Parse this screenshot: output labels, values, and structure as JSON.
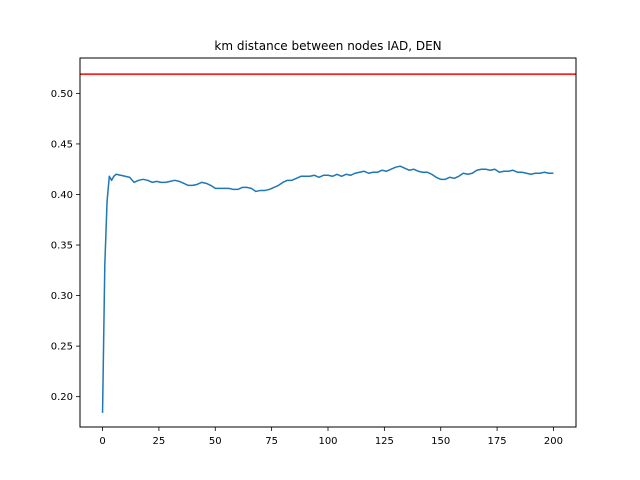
{
  "chart_data": {
    "type": "line",
    "title": "km distance between nodes IAD, DEN",
    "xlabel": "",
    "ylabel": "",
    "xlim": [
      -10,
      210
    ],
    "ylim": [
      0.17,
      0.535
    ],
    "xticks": [
      0,
      25,
      50,
      75,
      100,
      125,
      150,
      175,
      200
    ],
    "xtick_labels": [
      "0",
      "25",
      "50",
      "75",
      "100",
      "125",
      "150",
      "175",
      "200"
    ],
    "yticks": [
      0.2,
      0.25,
      0.3,
      0.35,
      0.4,
      0.45,
      0.5
    ],
    "ytick_labels": [
      "0.20",
      "0.25",
      "0.30",
      "0.35",
      "0.40",
      "0.45",
      "0.50"
    ],
    "grid": false,
    "reference_lines": [
      {
        "orientation": "horizontal",
        "y": 0.519,
        "color": "#ff0000"
      }
    ],
    "series": [
      {
        "color": "#1f77b4",
        "x": [
          0,
          1,
          2,
          3,
          4,
          5,
          6,
          8,
          10,
          12,
          14,
          16,
          18,
          20,
          22,
          24,
          26,
          28,
          30,
          32,
          34,
          36,
          38,
          40,
          42,
          44,
          46,
          48,
          50,
          52,
          54,
          56,
          58,
          60,
          62,
          64,
          66,
          68,
          70,
          72,
          74,
          76,
          78,
          80,
          82,
          84,
          86,
          88,
          90,
          92,
          94,
          96,
          98,
          100,
          102,
          104,
          106,
          108,
          110,
          112,
          114,
          116,
          118,
          120,
          122,
          124,
          126,
          128,
          130,
          132,
          134,
          136,
          138,
          140,
          142,
          144,
          146,
          148,
          150,
          152,
          154,
          156,
          158,
          160,
          162,
          164,
          166,
          168,
          170,
          172,
          174,
          176,
          178,
          180,
          182,
          184,
          186,
          188,
          190,
          192,
          194,
          196,
          198,
          200
        ],
        "values": [
          0.184,
          0.33,
          0.393,
          0.418,
          0.414,
          0.418,
          0.42,
          0.419,
          0.418,
          0.417,
          0.412,
          0.414,
          0.415,
          0.414,
          0.412,
          0.413,
          0.412,
          0.412,
          0.413,
          0.414,
          0.413,
          0.411,
          0.409,
          0.409,
          0.41,
          0.412,
          0.411,
          0.409,
          0.406,
          0.406,
          0.406,
          0.406,
          0.405,
          0.405,
          0.407,
          0.407,
          0.406,
          0.403,
          0.404,
          0.404,
          0.405,
          0.407,
          0.409,
          0.412,
          0.414,
          0.414,
          0.416,
          0.418,
          0.418,
          0.418,
          0.419,
          0.417,
          0.419,
          0.419,
          0.418,
          0.42,
          0.418,
          0.42,
          0.419,
          0.421,
          0.422,
          0.423,
          0.421,
          0.422,
          0.422,
          0.424,
          0.423,
          0.425,
          0.427,
          0.428,
          0.426,
          0.424,
          0.425,
          0.423,
          0.422,
          0.422,
          0.42,
          0.417,
          0.415,
          0.415,
          0.417,
          0.416,
          0.418,
          0.421,
          0.42,
          0.421,
          0.424,
          0.425,
          0.425,
          0.424,
          0.425,
          0.422,
          0.423,
          0.423,
          0.424,
          0.422,
          0.422,
          0.421,
          0.42,
          0.421,
          0.421,
          0.422,
          0.421,
          0.421
        ]
      }
    ]
  }
}
